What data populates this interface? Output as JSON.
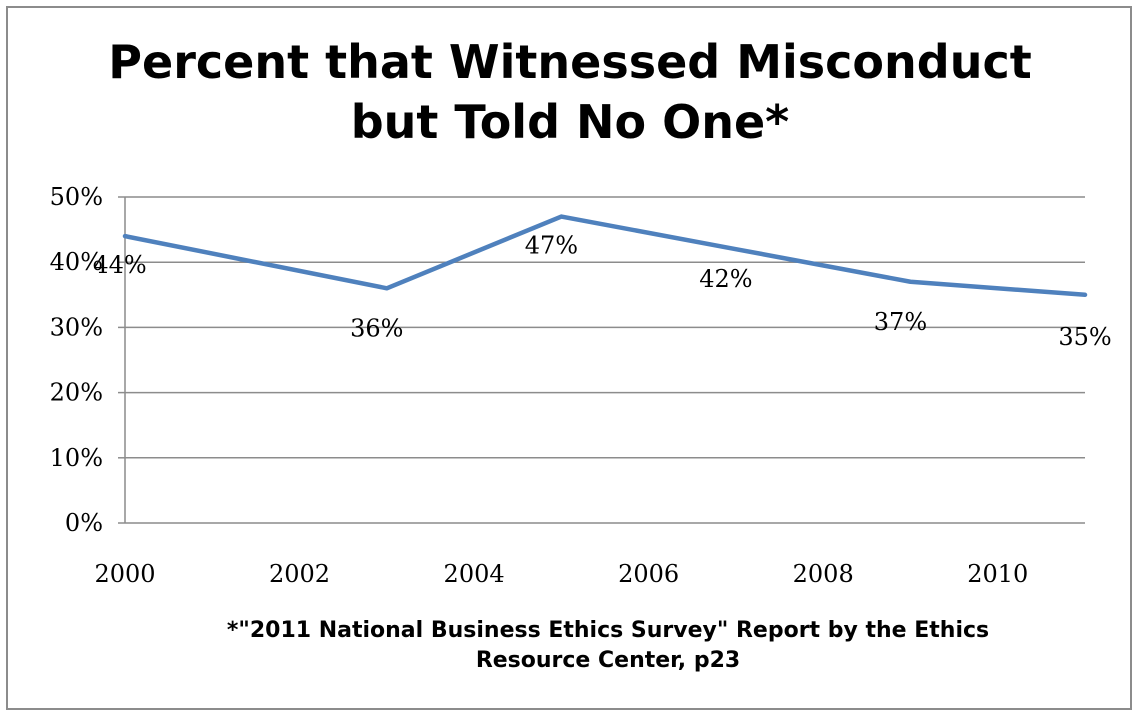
{
  "chart_data": {
    "type": "line",
    "title_lines": [
      "Percent that Witnessed Misconduct",
      "but Told No One*"
    ],
    "footnote_lines": [
      "*\"2011 National Business Ethics Survey\" Report by the Ethics",
      "Resource Center, p23"
    ],
    "xlabel": "",
    "ylabel": "",
    "x_ticks": [
      "2000",
      "2002",
      "2004",
      "2006",
      "2008",
      "2010"
    ],
    "xlim": [
      2000,
      2011
    ],
    "y_ticks": [
      "0%",
      "10%",
      "20%",
      "30%",
      "40%",
      "50%"
    ],
    "ylim": [
      0,
      50
    ],
    "grid": "horizontal",
    "legend": "none",
    "series": [
      {
        "x": [
          2000,
          2003,
          2005,
          2007,
          2009,
          2011
        ],
        "y": [
          44,
          36,
          47,
          42,
          37,
          35
        ],
        "labels": [
          "44%",
          "36%",
          "47%",
          "42%",
          "37%",
          "35%"
        ]
      }
    ],
    "colors": {
      "line": "#4f81bd",
      "grid": "#8c8c8c",
      "axis": "#8c8c8c"
    }
  }
}
